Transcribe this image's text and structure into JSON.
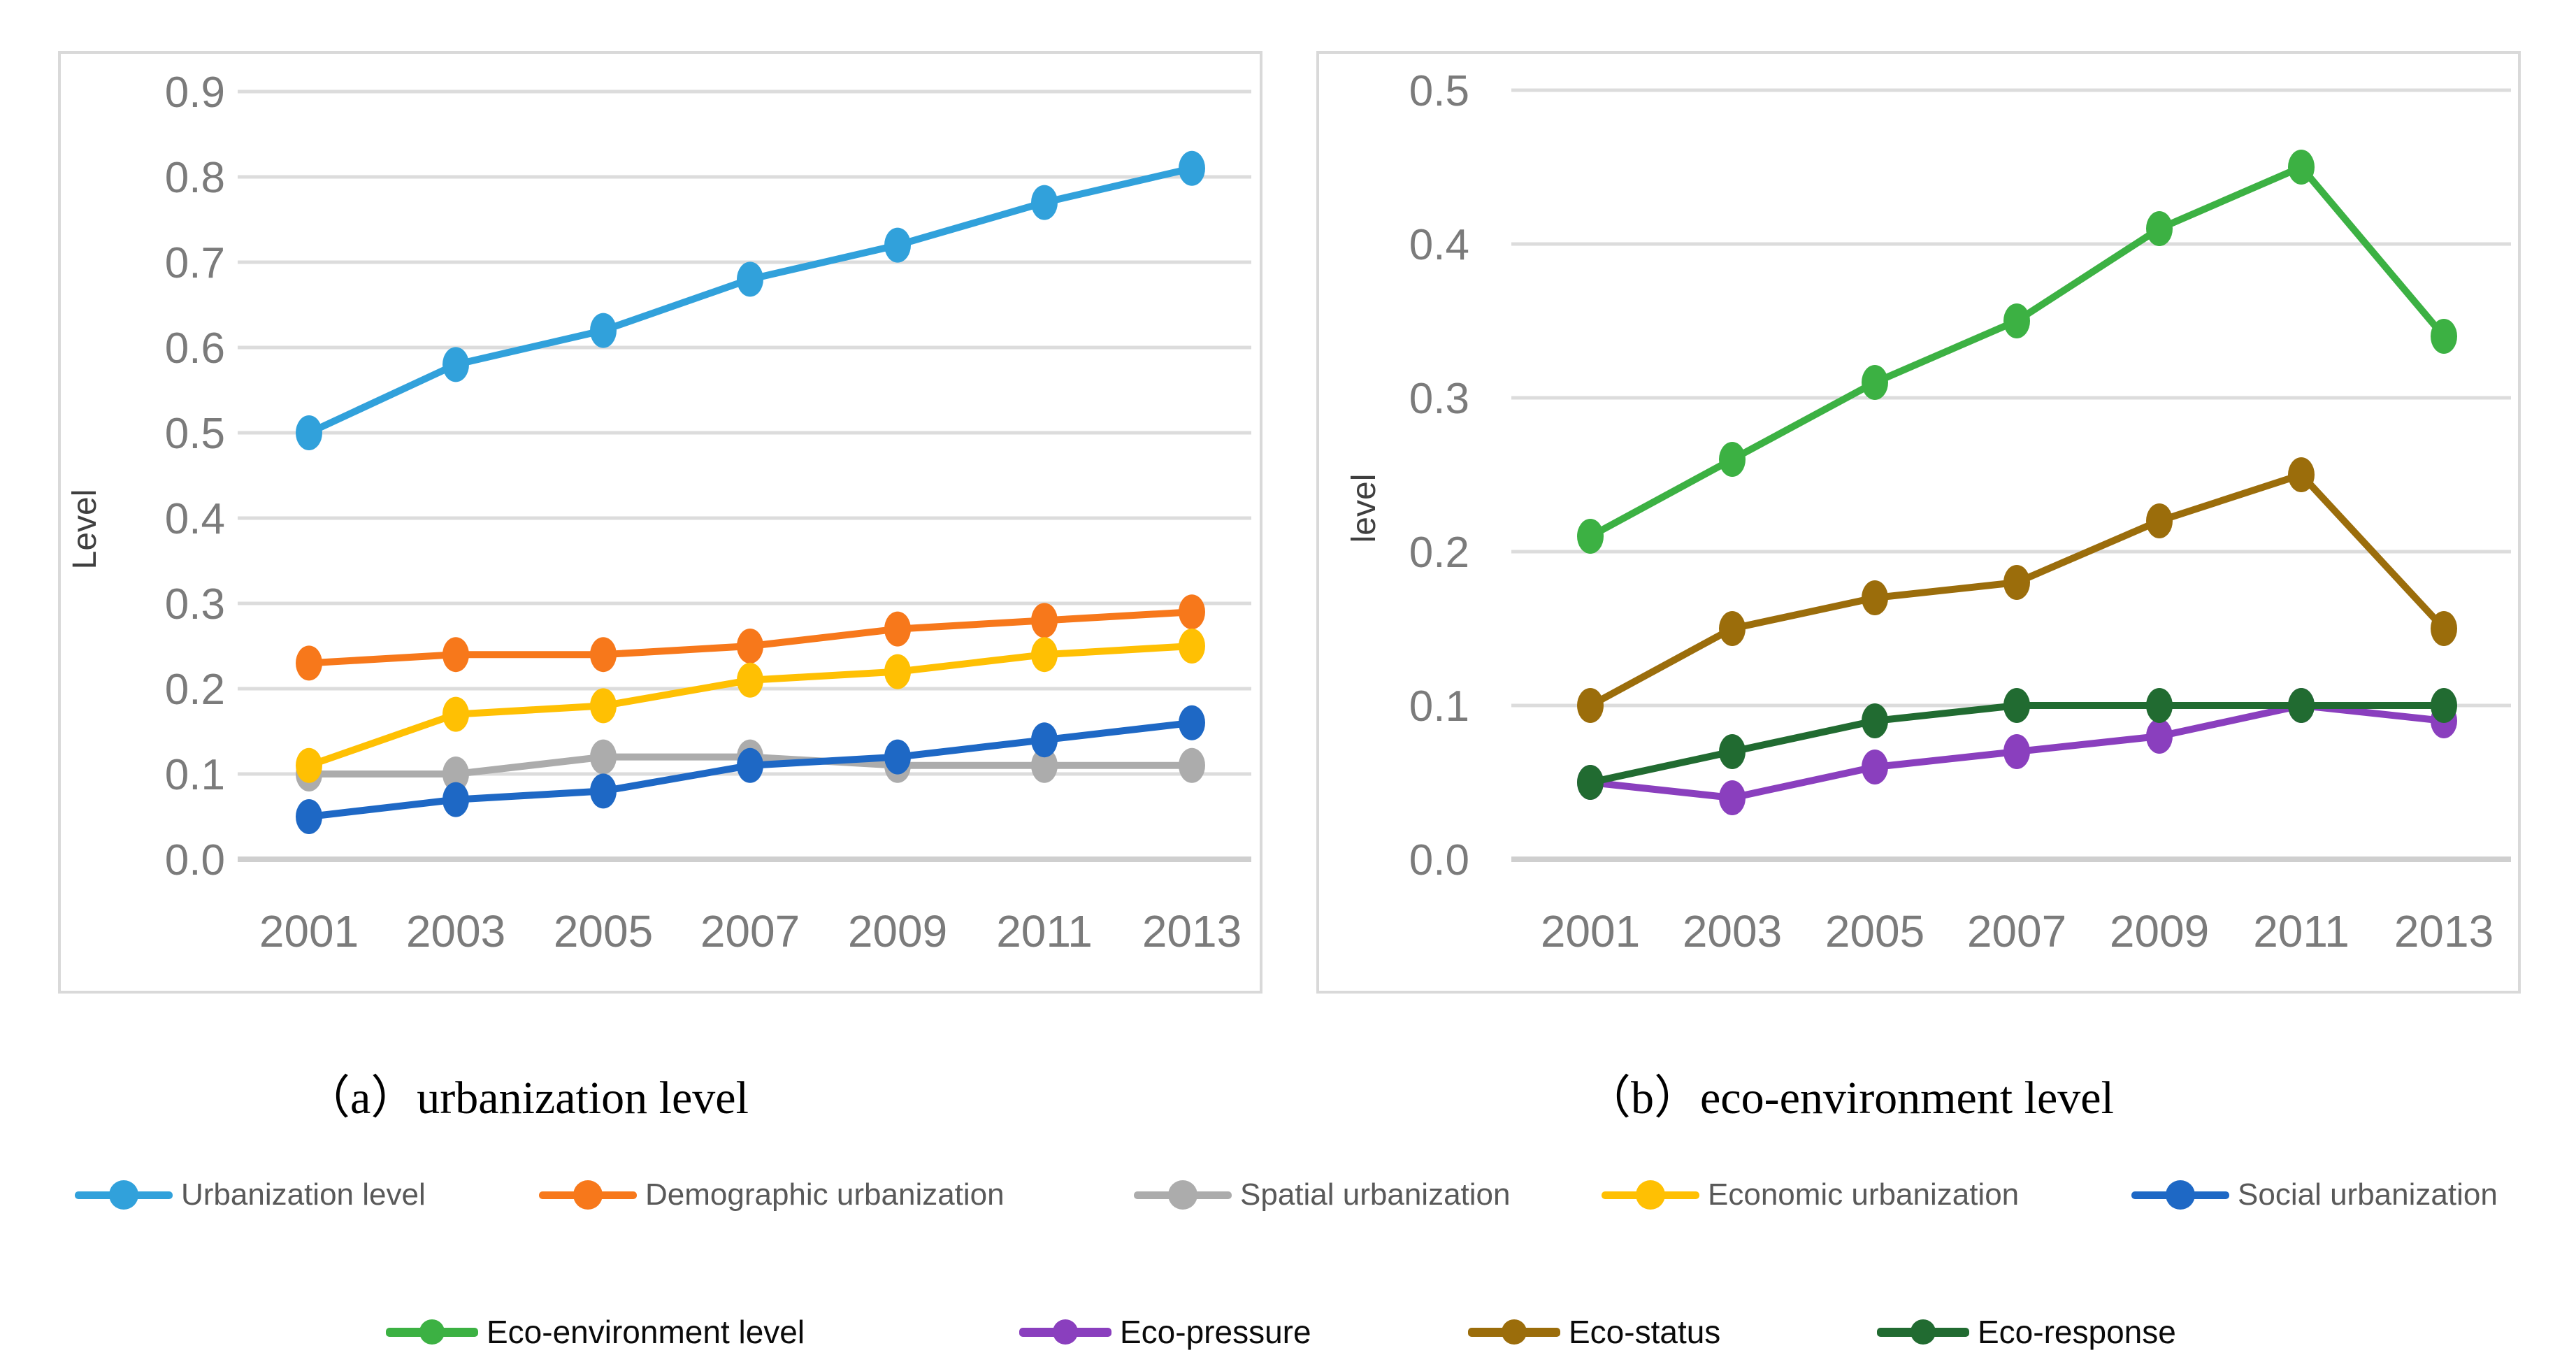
{
  "figure": {
    "description": "Two line charts of urbanization level and eco-environment level, 2001-2013"
  },
  "chart_data": [
    {
      "type": "line",
      "title": "（a）urbanization level",
      "xlabel": "",
      "ylabel": "Level",
      "x_labels": [
        "2001",
        "2003",
        "2005",
        "2007",
        "2009",
        "2011",
        "2013"
      ],
      "yticks": [
        "0.0",
        "0.1",
        "0.2",
        "0.3",
        "0.4",
        "0.5",
        "0.6",
        "0.7",
        "0.8",
        "0.9"
      ],
      "ylim": [
        0.0,
        0.9
      ],
      "grid": true,
      "legend_position": "bottom-row-1",
      "series": [
        {
          "name": "Urbanization level",
          "color": "#31A1DB",
          "values": [
            0.5,
            0.58,
            0.62,
            0.68,
            0.72,
            0.77,
            0.81
          ]
        },
        {
          "name": "Demographic urbanization",
          "color": "#F7781B",
          "values": [
            0.23,
            0.24,
            0.24,
            0.25,
            0.27,
            0.28,
            0.29
          ]
        },
        {
          "name": "Spatial urbanization",
          "color": "#ACACAC",
          "values": [
            0.1,
            0.1,
            0.12,
            0.12,
            0.11,
            0.11,
            0.11
          ]
        },
        {
          "name": "Economic urbanization",
          "color": "#FFC003",
          "values": [
            0.11,
            0.17,
            0.18,
            0.21,
            0.22,
            0.24,
            0.25
          ]
        },
        {
          "name": "Social urbanization",
          "color": "#1E68C5",
          "values": [
            0.05,
            0.07,
            0.08,
            0.11,
            0.12,
            0.14,
            0.16
          ]
        }
      ]
    },
    {
      "type": "line",
      "title": "（b）eco-environment level",
      "xlabel": "",
      "ylabel": "level",
      "x_labels": [
        "2001",
        "2003",
        "2005",
        "2007",
        "2009",
        "2011",
        "2013"
      ],
      "yticks": [
        "0.0",
        "0.1",
        "0.2",
        "0.3",
        "0.4",
        "0.5"
      ],
      "ylim": [
        0.0,
        0.5
      ],
      "grid": true,
      "legend_position": "bottom-row-2",
      "series": [
        {
          "name": "Eco-environment level",
          "color": "#3CB143",
          "values": [
            0.21,
            0.26,
            0.31,
            0.35,
            0.41,
            0.45,
            0.34
          ]
        },
        {
          "name": "Eco-pressure",
          "color": "#8A3FBE",
          "values": [
            0.05,
            0.04,
            0.06,
            0.07,
            0.08,
            0.1,
            0.09
          ]
        },
        {
          "name": "Eco-status",
          "color": "#9B6D0B",
          "values": [
            0.1,
            0.15,
            0.17,
            0.18,
            0.22,
            0.25,
            0.15
          ]
        },
        {
          "name": "Eco-response",
          "color": "#216B31",
          "values": [
            0.05,
            0.07,
            0.09,
            0.1,
            0.1,
            0.1,
            0.1
          ]
        }
      ]
    }
  ],
  "style": {
    "gridline_color": "#DCDCDC",
    "axis_line_color": "#CFCFCF",
    "tick_label_color": "#7B7B7B",
    "panel_border_color": "#D9D9D9"
  }
}
